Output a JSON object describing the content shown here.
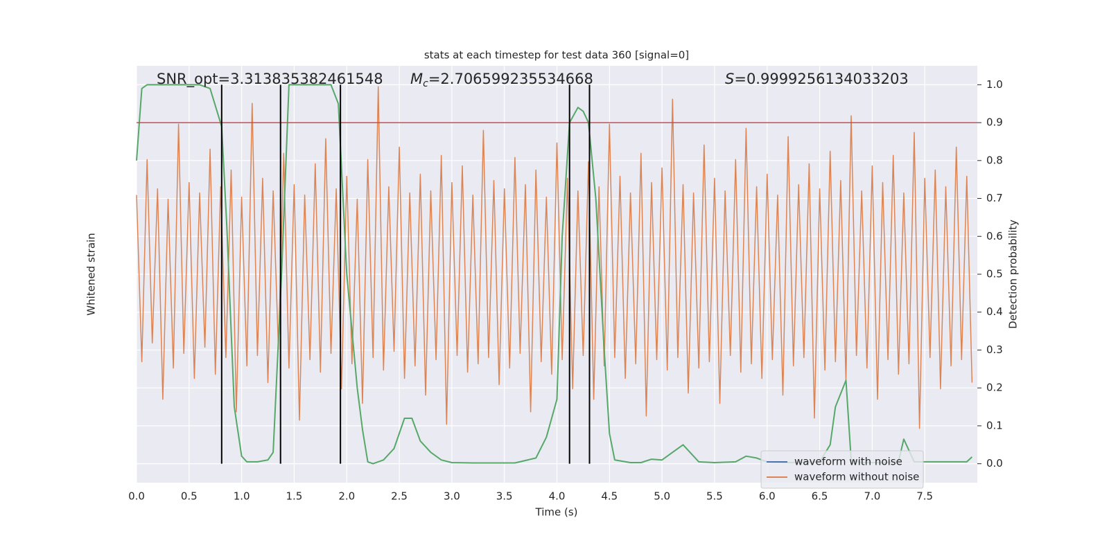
{
  "chart_data": {
    "type": "line",
    "title": "stats at each timestep for test data 360 [signal=0]",
    "xlabel": "Time (s)",
    "ylabel": "Whitened strain",
    "y2label": "Detection probability",
    "annotations": [
      {
        "text": "SNR_opt=3.313835382461548"
      },
      {
        "symbol": "M",
        "sub": "c",
        "text": "=2.706599235534668"
      },
      {
        "symbol": "S",
        "text": "=0.9999256134033203"
      }
    ],
    "xlim": [
      0,
      8
    ],
    "xticks": [
      {
        "value": 0,
        "label": "0.0"
      },
      0.5,
      {
        "value": 1,
        "label": "1.0"
      },
      1.5,
      {
        "value": 2,
        "label": "2.0"
      },
      2.5,
      {
        "value": 3,
        "label": "3.0"
      },
      3.5,
      {
        "value": 4,
        "label": "4.0"
      },
      4.5,
      {
        "value": 5,
        "label": "5.0"
      },
      5.5,
      {
        "value": 6,
        "label": "6.0"
      },
      6.5,
      {
        "value": 7,
        "label": "7.0"
      },
      7.5
    ],
    "ylim": [
      -1,
      1
    ],
    "y2lim": [
      -0.05,
      1.05
    ],
    "y2ticks": [
      {
        "value": 0,
        "label": "0.0"
      },
      0.1,
      0.2,
      0.3,
      0.4,
      0.5,
      0.6,
      0.7,
      0.8,
      0.9,
      {
        "value": 1,
        "label": "1.0"
      }
    ],
    "grid": true,
    "legend": "lower right",
    "threshold": 0.9,
    "threshold_color": "#c44e52",
    "vlines": [
      0.81,
      1.37,
      1.94,
      4.12,
      4.31
    ],
    "vline_color": "#000000",
    "series": [
      {
        "name": "waveform with noise",
        "color": "#4c72b0"
      },
      {
        "name": "waveform without noise",
        "color": "#dd8452",
        "x": [
          0,
          0.05,
          0.1,
          0.15,
          0.2,
          0.25,
          0.3,
          0.35,
          0.4,
          0.45,
          0.5,
          0.55,
          0.6,
          0.65,
          0.7,
          0.75,
          0.8,
          0.85,
          0.9,
          0.95,
          1,
          1.05,
          1.1,
          1.15,
          1.2,
          1.25,
          1.3,
          1.35,
          1.4,
          1.45,
          1.5,
          1.55,
          1.6,
          1.65,
          1.7,
          1.75,
          1.8,
          1.85,
          1.9,
          1.95,
          2,
          2.05,
          2.1,
          2.15,
          2.2,
          2.25,
          2.3,
          2.35,
          2.4,
          2.45,
          2.5,
          2.55,
          2.6,
          2.65,
          2.7,
          2.75,
          2.8,
          2.85,
          2.9,
          2.95,
          3,
          3.05,
          3.1,
          3.15,
          3.2,
          3.25,
          3.3,
          3.35,
          3.4,
          3.45,
          3.5,
          3.55,
          3.6,
          3.65,
          3.7,
          3.75,
          3.8,
          3.85,
          3.9,
          3.95,
          4,
          4.05,
          4.1,
          4.15,
          4.2,
          4.25,
          4.3,
          4.35,
          4.4,
          4.45,
          4.5,
          4.55,
          4.6,
          4.65,
          4.7,
          4.75,
          4.8,
          4.85,
          4.9,
          4.95,
          5,
          5.05,
          5.1,
          5.15,
          5.2,
          5.25,
          5.3,
          5.35,
          5.4,
          5.45,
          5.5,
          5.55,
          5.6,
          5.65,
          5.7,
          5.75,
          5.8,
          5.85,
          5.9,
          5.95,
          6,
          6.05,
          6.1,
          6.15,
          6.2,
          6.25,
          6.3,
          6.35,
          6.4,
          6.45,
          6.5,
          6.55,
          6.6,
          6.65,
          6.7,
          6.75,
          6.8,
          6.85,
          6.9,
          6.95,
          7,
          7.05,
          7.1,
          7.15,
          7.2,
          7.25,
          7.3,
          7.35,
          7.4,
          7.45,
          7.5,
          7.55,
          7.6,
          7.65,
          7.7,
          7.75,
          7.8,
          7.85,
          7.9,
          7.95
        ],
        "values": [
          0.38,
          -0.42,
          0.55,
          -0.33,
          0.41,
          -0.6,
          0.36,
          -0.45,
          0.72,
          -0.38,
          0.44,
          -0.5,
          0.39,
          -0.35,
          0.6,
          -0.48,
          0.42,
          -0.4,
          0.5,
          -0.66,
          0.37,
          -0.44,
          0.82,
          -0.39,
          0.46,
          -0.52,
          0.4,
          -0.36,
          0.58,
          -0.45,
          0.43,
          -0.7,
          0.38,
          -0.41,
          0.53,
          -0.47,
          0.65,
          -0.38,
          0.41,
          -0.55,
          0.47,
          -0.43,
          0.36,
          -0.62,
          0.55,
          -0.4,
          0.9,
          -0.46,
          0.42,
          -0.37,
          0.61,
          -0.5,
          0.39,
          -0.44,
          0.48,
          -0.58,
          0.4,
          -0.41,
          0.57,
          -0.72,
          0.44,
          -0.39,
          0.52,
          -0.47,
          0.38,
          -0.43,
          0.69,
          -0.4,
          0.45,
          -0.53,
          0.41,
          -0.45,
          0.56,
          -0.38,
          0.43,
          -0.66,
          0.5,
          -0.42,
          0.37,
          -0.48,
          0.63,
          -0.41,
          0.46,
          -0.55,
          0.4,
          -0.39,
          0.54,
          -0.6,
          0.42,
          -0.44,
          0.72,
          -0.4,
          0.47,
          -0.5,
          0.39,
          -0.43,
          0.58,
          -0.68,
          0.44,
          -0.41,
          0.51,
          -0.46,
          0.84,
          -0.4,
          0.43,
          -0.57,
          0.39,
          -0.45,
          0.62,
          -0.42,
          0.46,
          -0.62,
          0.4,
          -0.39,
          0.55,
          -0.47,
          0.7,
          -0.43,
          0.42,
          -0.5,
          0.48,
          -0.41,
          0.38,
          -0.58,
          0.66,
          -0.44,
          0.43,
          -0.4,
          0.53,
          -0.69,
          0.41,
          -0.46,
          0.59,
          -0.42,
          0.45,
          -0.51,
          0.76,
          -0.39,
          0.4,
          -0.45,
          0.52,
          -0.6,
          0.44,
          -0.41,
          0.57,
          -0.48,
          0.39,
          -0.43,
          0.68,
          -0.74,
          0.46,
          -0.4,
          0.5,
          -0.55,
          0.42,
          -0.44,
          0.61,
          -0.41,
          0.47,
          -0.52
        ]
      },
      {
        "color": "#55a868",
        "axis": "y2",
        "x": [
          0,
          0.05,
          0.1,
          0.2,
          0.3,
          0.4,
          0.5,
          0.6,
          0.7,
          0.81,
          0.86,
          0.93,
          1.0,
          1.05,
          1.15,
          1.25,
          1.3,
          1.38,
          1.45,
          1.55,
          1.65,
          1.75,
          1.85,
          1.92,
          2.0,
          2.1,
          2.15,
          2.2,
          2.25,
          2.35,
          2.45,
          2.55,
          2.62,
          2.7,
          2.8,
          2.9,
          3.0,
          3.2,
          3.4,
          3.6,
          3.8,
          3.9,
          4.0,
          4.05,
          4.12,
          4.2,
          4.25,
          4.3,
          4.37,
          4.45,
          4.5,
          4.55,
          4.7,
          4.8,
          4.9,
          5.0,
          5.1,
          5.2,
          5.3,
          5.35,
          5.5,
          5.7,
          5.8,
          5.9,
          6.0,
          6.2,
          6.5,
          6.6,
          6.65,
          6.75,
          6.8,
          6.9,
          7.1,
          7.25,
          7.3,
          7.4,
          7.6,
          7.9,
          7.95
        ],
        "values": [
          0.8,
          0.99,
          1.0,
          1.0,
          1.0,
          1.0,
          1.0,
          1.0,
          0.99,
          0.89,
          0.62,
          0.15,
          0.02,
          0.005,
          0.005,
          0.01,
          0.03,
          0.5,
          1.0,
          1.0,
          1.0,
          1.0,
          1.0,
          0.95,
          0.5,
          0.2,
          0.09,
          0.005,
          0.0,
          0.01,
          0.04,
          0.12,
          0.12,
          0.06,
          0.03,
          0.01,
          0.003,
          0.002,
          0.002,
          0.002,
          0.015,
          0.07,
          0.17,
          0.6,
          0.9,
          0.94,
          0.93,
          0.9,
          0.7,
          0.3,
          0.08,
          0.01,
          0.003,
          0.003,
          0.012,
          0.01,
          0.03,
          0.05,
          0.02,
          0.005,
          0.003,
          0.005,
          0.02,
          0.015,
          0.005,
          0.003,
          0.005,
          0.05,
          0.15,
          0.22,
          0.01,
          0.003,
          0.003,
          0.005,
          0.065,
          0.005,
          0.005,
          0.005,
          0.018
        ]
      }
    ]
  }
}
